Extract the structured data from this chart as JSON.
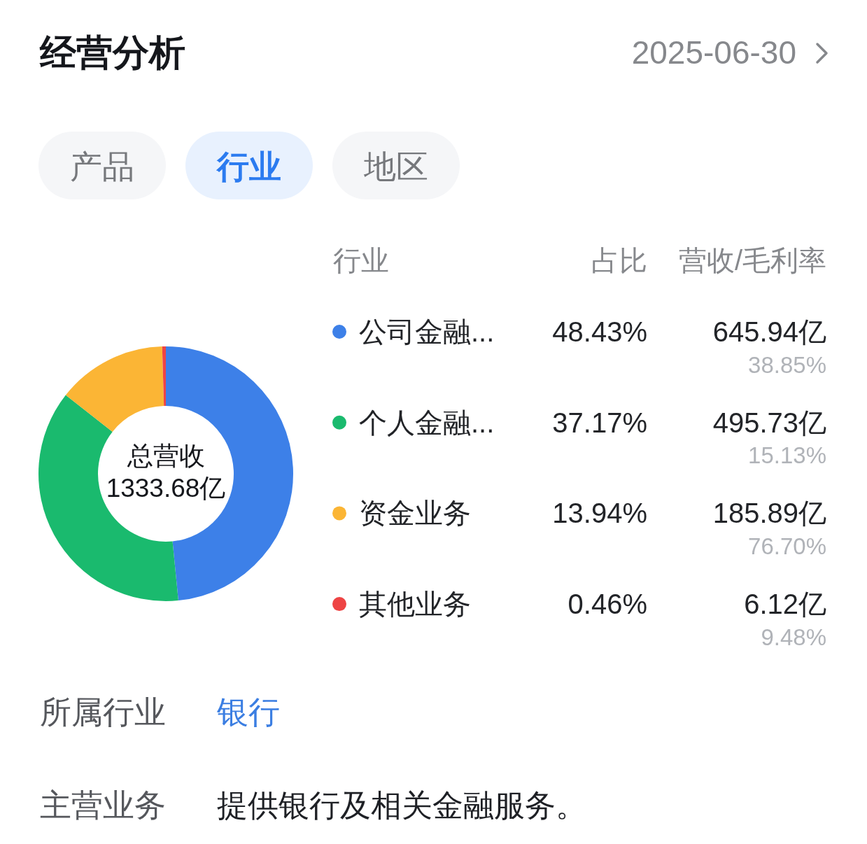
{
  "chart_data": {
    "type": "donut",
    "title": "经营分析",
    "subtitle": "2025-06-30",
    "legend_title": "行业",
    "legend": "right",
    "categories": [
      "公司金融...",
      "个人金融...",
      "资金业务",
      "其他业务"
    ],
    "values": [
      645.94,
      495.73,
      185.89,
      6.12
    ],
    "colors": [
      "#3d80e8",
      "#1aba6e",
      "#fbb535",
      "#ee4444"
    ],
    "value_labels": [
      "645.94亿",
      "495.73亿",
      "185.89亿",
      "6.12亿"
    ],
    "annotations": [
      "产品",
      "行业",
      "地区",
      "占比",
      "营收/毛利率",
      "总营收",
      "1333.68亿",
      "48.43%",
      "37.17%",
      "13.94%",
      "0.46%",
      "38.85%",
      "15.13%",
      "76.70%",
      "9.48%",
      "所属行业",
      "银行",
      "主营业务",
      "提供银行及相关金融服务。"
    ]
  }
}
